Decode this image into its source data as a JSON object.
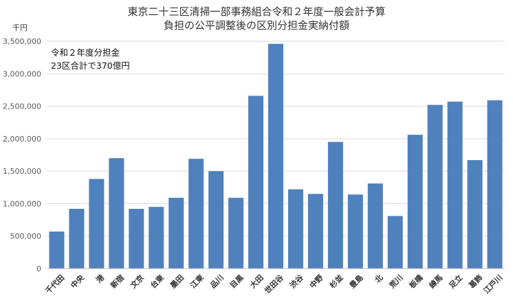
{
  "chart_data": {
    "type": "bar",
    "title": "東京二十三区清掃一部事務組合令和２年度一般会計予算",
    "subtitle": "負担の公平調整後の区別分担金実納付額",
    "unit": "千円",
    "annotation_lines": [
      "令和２年度分担金",
      "23区合計で370億円"
    ],
    "ylim": [
      0,
      3500000
    ],
    "ytick_labels": [
      "0",
      "500,000",
      "1,000,000",
      "1,500,000",
      "2,000,000",
      "2,500,000",
      "3,000,000",
      "3,500,000"
    ],
    "grid": true,
    "bar_color": "#4F81BD",
    "categories": [
      "千代田",
      "中央",
      "港",
      "新宿",
      "文京",
      "台東",
      "墨田",
      "江東",
      "品川",
      "目黒",
      "大田",
      "世田谷",
      "渋谷",
      "中野",
      "杉並",
      "豊島",
      "北",
      "荒川",
      "板橋",
      "練馬",
      "足立",
      "葛飾",
      "江戸川"
    ],
    "values": [
      570000,
      920000,
      1380000,
      1700000,
      920000,
      950000,
      1090000,
      1690000,
      1500000,
      1090000,
      2660000,
      3460000,
      1220000,
      1150000,
      1950000,
      1140000,
      1310000,
      810000,
      2060000,
      2520000,
      2570000,
      1670000,
      2590000
    ]
  }
}
